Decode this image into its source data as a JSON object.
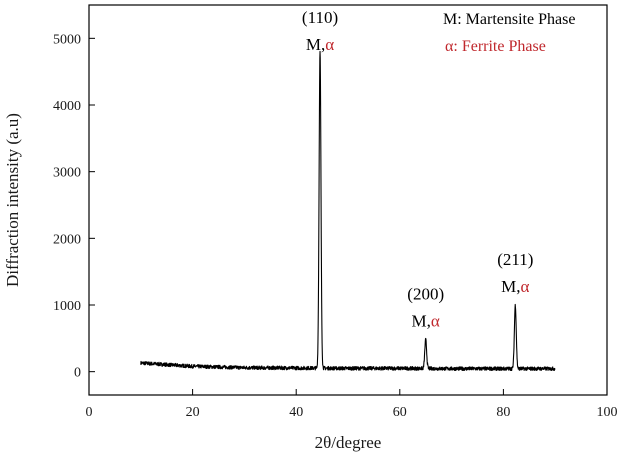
{
  "chart_data": {
    "type": "line",
    "xlabel": "2θ/degree",
    "ylabel": "Diffraction intensity (a.u)",
    "xlim": [
      0,
      100
    ],
    "ylim": [
      -350,
      5500
    ],
    "xticks": [
      0,
      20,
      40,
      60,
      80,
      100
    ],
    "yticks": [
      0,
      1000,
      2000,
      3000,
      4000,
      5000
    ],
    "grid": false,
    "series": [
      {
        "color": "#000000",
        "x_range": [
          10,
          90
        ],
        "baseline": [
          [
            10,
            130
          ],
          [
            20,
            80
          ],
          [
            30,
            60
          ],
          [
            40,
            55
          ],
          [
            50,
            50
          ],
          [
            60,
            50
          ],
          [
            70,
            45
          ],
          [
            80,
            45
          ],
          [
            90,
            45
          ]
        ],
        "peaks": [
          {
            "x": 44.6,
            "y": 4800
          },
          {
            "x": 65.0,
            "y": 480
          },
          {
            "x": 82.3,
            "y": 1000
          }
        ]
      }
    ],
    "peak_labels": [
      {
        "x": 44.6,
        "hkl": "(110)",
        "phase_m": "M,",
        "phase_a": "α"
      },
      {
        "x": 65.0,
        "hkl": "(200)",
        "phase_m": "M,",
        "phase_a": "α"
      },
      {
        "x": 82.3,
        "hkl": "(211)",
        "phase_m": "M,",
        "phase_a": "α"
      }
    ],
    "legend": {
      "position": "top-right",
      "entries": [
        {
          "text": "M: Martensite Phase",
          "color": "#000000"
        },
        {
          "text": "α: Ferrite Phase",
          "color": "#c0282d"
        }
      ]
    },
    "colors": {
      "axis": "#000000",
      "alpha": "#c0282d"
    }
  }
}
